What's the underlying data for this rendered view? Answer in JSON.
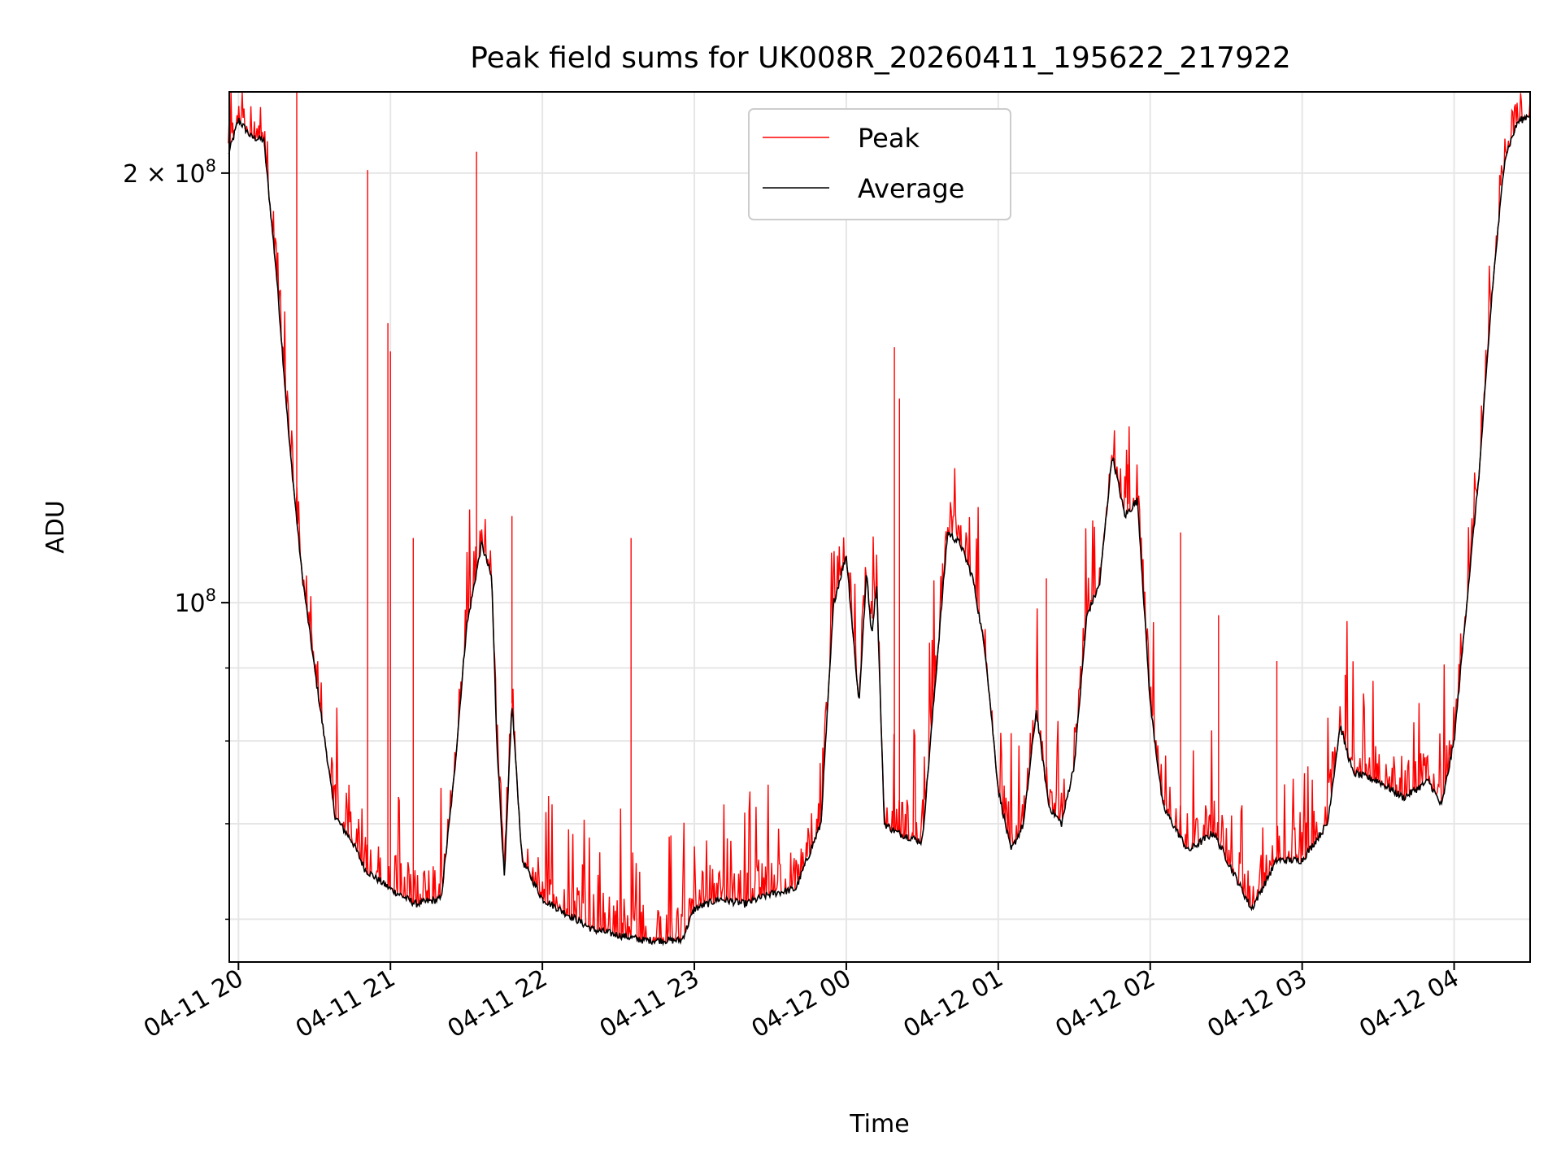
{
  "chart_data": {
    "type": "line",
    "title": "Peak field sums for UK008R_20260411_195622_217922",
    "xlabel": "Time",
    "ylabel": "ADU",
    "y_scale": "log",
    "ylim": [
      56000000,
      228000000
    ],
    "xlim": [
      "2026-04-11 19:56:22",
      "2026-04-12 04:30:00"
    ],
    "grid": true,
    "legend_position": "upper center",
    "x_ticks": [
      {
        "t": "2026-04-11 20:00",
        "label": "04-11 20"
      },
      {
        "t": "2026-04-11 21:00",
        "label": "04-11 21"
      },
      {
        "t": "2026-04-11 22:00",
        "label": "04-11 22"
      },
      {
        "t": "2026-04-11 23:00",
        "label": "04-11 23"
      },
      {
        "t": "2026-04-12 00:00",
        "label": "04-12 00"
      },
      {
        "t": "2026-04-12 01:00",
        "label": "04-12 01"
      },
      {
        "t": "2026-04-12 02:00",
        "label": "04-12 02"
      },
      {
        "t": "2026-04-12 03:00",
        "label": "04-12 03"
      },
      {
        "t": "2026-04-12 04:00",
        "label": "04-12 04"
      }
    ],
    "y_major_ticks": [
      {
        "value": 100000000,
        "label_base": "10",
        "label_exp": "8",
        "label_coef": ""
      },
      {
        "value": 200000000,
        "label_base": "10",
        "label_exp": "8",
        "label_coef": "2 × "
      }
    ],
    "y_minor_ticks": [
      60000000,
      70000000,
      80000000,
      90000000
    ],
    "series": [
      {
        "name": "Average",
        "color": "#000000",
        "x": [
          "2026-04-11 19:56",
          "2026-04-11 20:00",
          "2026-04-11 20:05",
          "2026-04-11 20:10",
          "2026-04-11 20:15",
          "2026-04-11 20:20",
          "2026-04-11 20:25",
          "2026-04-11 20:30",
          "2026-04-11 20:35",
          "2026-04-11 20:38",
          "2026-04-11 20:40",
          "2026-04-11 20:45",
          "2026-04-11 20:50",
          "2026-04-11 21:00",
          "2026-04-11 21:10",
          "2026-04-11 21:20",
          "2026-04-11 21:25",
          "2026-04-11 21:30",
          "2026-04-11 21:36",
          "2026-04-11 21:40",
          "2026-04-11 21:42",
          "2026-04-11 21:45",
          "2026-04-11 21:48",
          "2026-04-11 21:52",
          "2026-04-11 22:00",
          "2026-04-11 22:20",
          "2026-04-11 22:40",
          "2026-04-11 22:55",
          "2026-04-11 23:00",
          "2026-04-11 23:10",
          "2026-04-11 23:20",
          "2026-04-11 23:30",
          "2026-04-11 23:40",
          "2026-04-11 23:50",
          "2026-04-11 23:55",
          "2026-04-12 00:00",
          "2026-04-12 00:05",
          "2026-04-12 00:08",
          "2026-04-12 00:10",
          "2026-04-12 00:12",
          "2026-04-12 00:15",
          "2026-04-12 00:20",
          "2026-04-12 00:30",
          "2026-04-12 00:40",
          "2026-04-12 00:45",
          "2026-04-12 00:50",
          "2026-04-12 00:55",
          "2026-04-12 01:00",
          "2026-04-12 01:05",
          "2026-04-12 01:10",
          "2026-04-12 01:15",
          "2026-04-12 01:20",
          "2026-04-12 01:25",
          "2026-04-12 01:30",
          "2026-04-12 01:35",
          "2026-04-12 01:40",
          "2026-04-12 01:45",
          "2026-04-12 01:50",
          "2026-04-12 01:55",
          "2026-04-12 02:00",
          "2026-04-12 02:05",
          "2026-04-12 02:15",
          "2026-04-12 02:25",
          "2026-04-12 02:40",
          "2026-04-12 02:50",
          "2026-04-12 03:00",
          "2026-04-12 03:10",
          "2026-04-12 03:15",
          "2026-04-12 03:20",
          "2026-04-12 03:30",
          "2026-04-12 03:40",
          "2026-04-12 03:45",
          "2026-04-12 03:50",
          "2026-04-12 03:55",
          "2026-04-12 04:00",
          "2026-04-12 04:05",
          "2026-04-12 04:10",
          "2026-04-12 04:15",
          "2026-04-12 04:20",
          "2026-04-12 04:25",
          "2026-04-12 04:30"
        ],
        "values": [
          206000000,
          218000000,
          212000000,
          211000000,
          170000000,
          130000000,
          105000000,
          90000000,
          78000000,
          71000000,
          70000000,
          68000000,
          65000000,
          63000000,
          61500000,
          62000000,
          75000000,
          96000000,
          110000000,
          104000000,
          80000000,
          64000000,
          85000000,
          66000000,
          62000000,
          59000000,
          58000000,
          58000000,
          61000000,
          62000000,
          61500000,
          62500000,
          63000000,
          70000000,
          100000000,
          108000000,
          85000000,
          105000000,
          95000000,
          103000000,
          70000000,
          69000000,
          68000000,
          112000000,
          110000000,
          104000000,
          92000000,
          74000000,
          67000000,
          70000000,
          84000000,
          72000000,
          70000000,
          77000000,
          98000000,
          103000000,
          127000000,
          115000000,
          118000000,
          85000000,
          72000000,
          67000000,
          69000000,
          61000000,
          66000000,
          66000000,
          70000000,
          82000000,
          76000000,
          75000000,
          73000000,
          74000000,
          75000000,
          72000000,
          80000000,
          100000000,
          124000000,
          165000000,
          205000000,
          217000000,
          220000000
        ]
      },
      {
        "name": "Peak",
        "color": "#ff0000",
        "spikes": [
          {
            "t": "2026-04-11 20:23",
            "value": 240000000
          },
          {
            "t": "2026-04-11 20:51",
            "value": 201000000
          },
          {
            "t": "2026-04-11 20:59",
            "value": 157000000
          },
          {
            "t": "2026-04-11 21:00",
            "value": 150000000
          },
          {
            "t": "2026-04-11 21:09",
            "value": 111000000
          },
          {
            "t": "2026-04-11 21:34",
            "value": 207000000
          },
          {
            "t": "2026-04-11 21:48",
            "value": 115000000
          },
          {
            "t": "2026-04-11 22:35",
            "value": 111000000
          },
          {
            "t": "2026-04-12 00:19",
            "value": 151000000
          },
          {
            "t": "2026-04-12 00:21",
            "value": 139000000
          },
          {
            "t": "2026-04-12 01:19",
            "value": 104000000
          },
          {
            "t": "2026-04-12 01:51",
            "value": 125000000
          },
          {
            "t": "2026-04-12 02:12",
            "value": 112000000
          },
          {
            "t": "2026-04-12 02:27",
            "value": 98000000
          },
          {
            "t": "2026-04-12 02:50",
            "value": 91000000
          },
          {
            "t": "2026-04-12 03:17",
            "value": 89000000
          }
        ]
      }
    ]
  }
}
